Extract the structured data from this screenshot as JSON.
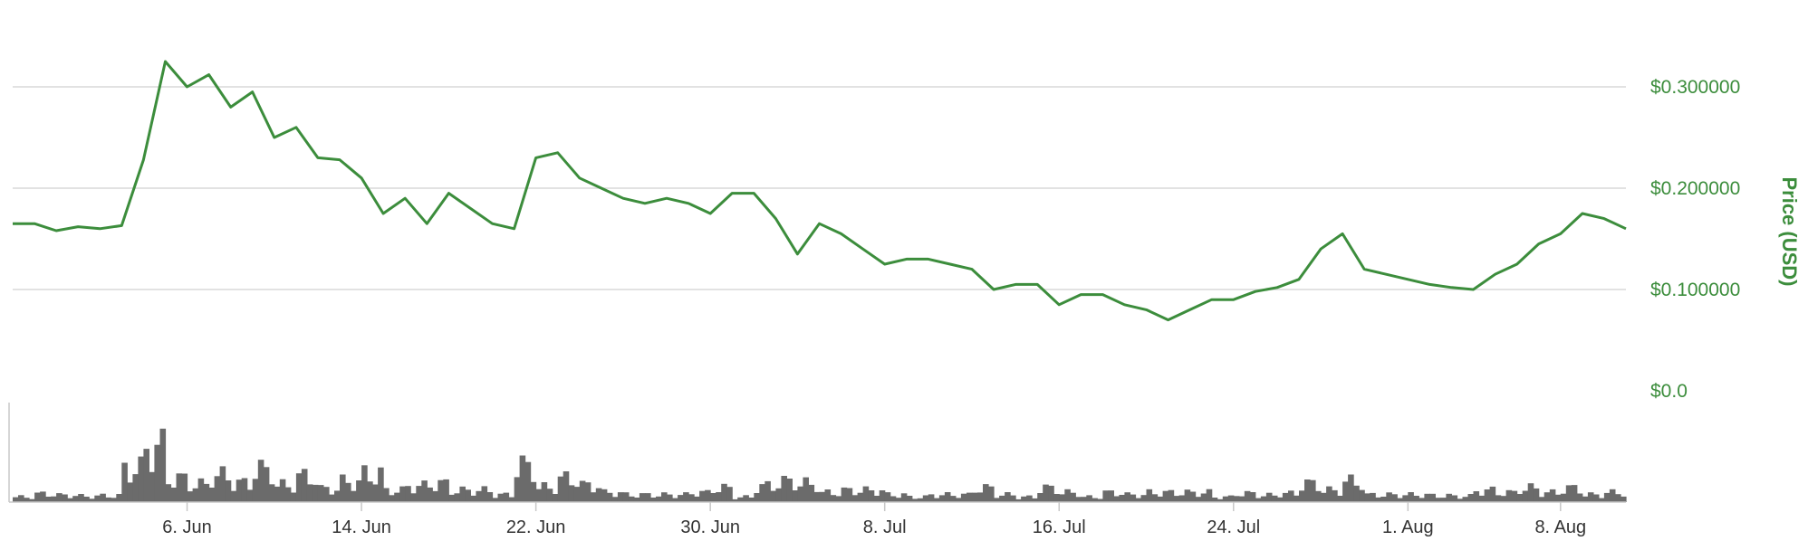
{
  "chart_data": {
    "type": "line",
    "ylabel": "Price (USD)",
    "ylim": [
      0,
      0.35
    ],
    "grid": true,
    "x_ticks": [
      "6. Jun",
      "14. Jun",
      "22. Jun",
      "30. Jun",
      "8. Jul",
      "16. Jul",
      "24. Jul",
      "1. Aug",
      "8. Aug"
    ],
    "y_ticks": [
      "$0.0",
      "$0.100000",
      "$0.200000",
      "$0.300000"
    ],
    "y_tick_values": [
      0,
      0.1,
      0.2,
      0.3
    ],
    "x_start": "2017-05-29",
    "x_end": "2017-08-11",
    "series": [
      {
        "type": "line",
        "color": "#3c8d3c",
        "points": [
          [
            "2017-05-29",
            0.165
          ],
          [
            "2017-05-30",
            0.165
          ],
          [
            "2017-05-31",
            0.158
          ],
          [
            "2017-06-01",
            0.162
          ],
          [
            "2017-06-02",
            0.16
          ],
          [
            "2017-06-03",
            0.163
          ],
          [
            "2017-06-04",
            0.228
          ],
          [
            "2017-06-05",
            0.325
          ],
          [
            "2017-06-06",
            0.3
          ],
          [
            "2017-06-07",
            0.312
          ],
          [
            "2017-06-08",
            0.28
          ],
          [
            "2017-06-09",
            0.295
          ],
          [
            "2017-06-10",
            0.25
          ],
          [
            "2017-06-11",
            0.26
          ],
          [
            "2017-06-12",
            0.23
          ],
          [
            "2017-06-13",
            0.228
          ],
          [
            "2017-06-14",
            0.21
          ],
          [
            "2017-06-15",
            0.175
          ],
          [
            "2017-06-16",
            0.19
          ],
          [
            "2017-06-17",
            0.165
          ],
          [
            "2017-06-18",
            0.195
          ],
          [
            "2017-06-19",
            0.18
          ],
          [
            "2017-06-20",
            0.165
          ],
          [
            "2017-06-21",
            0.16
          ],
          [
            "2017-06-22",
            0.23
          ],
          [
            "2017-06-23",
            0.235
          ],
          [
            "2017-06-24",
            0.21
          ],
          [
            "2017-06-25",
            0.2
          ],
          [
            "2017-06-26",
            0.19
          ],
          [
            "2017-06-27",
            0.185
          ],
          [
            "2017-06-28",
            0.19
          ],
          [
            "2017-06-29",
            0.185
          ],
          [
            "2017-06-30",
            0.175
          ],
          [
            "2017-07-01",
            0.195
          ],
          [
            "2017-07-02",
            0.195
          ],
          [
            "2017-07-03",
            0.17
          ],
          [
            "2017-07-04",
            0.135
          ],
          [
            "2017-07-05",
            0.165
          ],
          [
            "2017-07-06",
            0.155
          ],
          [
            "2017-07-07",
            0.14
          ],
          [
            "2017-07-08",
            0.125
          ],
          [
            "2017-07-09",
            0.13
          ],
          [
            "2017-07-10",
            0.13
          ],
          [
            "2017-07-11",
            0.125
          ],
          [
            "2017-07-12",
            0.12
          ],
          [
            "2017-07-13",
            0.1
          ],
          [
            "2017-07-14",
            0.105
          ],
          [
            "2017-07-15",
            0.105
          ],
          [
            "2017-07-16",
            0.085
          ],
          [
            "2017-07-17",
            0.095
          ],
          [
            "2017-07-18",
            0.095
          ],
          [
            "2017-07-19",
            0.085
          ],
          [
            "2017-07-20",
            0.08
          ],
          [
            "2017-07-21",
            0.07
          ],
          [
            "2017-07-22",
            0.08
          ],
          [
            "2017-07-23",
            0.09
          ],
          [
            "2017-07-24",
            0.09
          ],
          [
            "2017-07-25",
            0.098
          ],
          [
            "2017-07-26",
            0.102
          ],
          [
            "2017-07-27",
            0.11
          ],
          [
            "2017-07-28",
            0.14
          ],
          [
            "2017-07-29",
            0.155
          ],
          [
            "2017-07-30",
            0.12
          ],
          [
            "2017-07-31",
            0.115
          ],
          [
            "2017-08-01",
            0.11
          ],
          [
            "2017-08-02",
            0.105
          ],
          [
            "2017-08-03",
            0.102
          ],
          [
            "2017-08-04",
            0.1
          ],
          [
            "2017-08-05",
            0.115
          ],
          [
            "2017-08-06",
            0.125
          ],
          [
            "2017-08-07",
            0.145
          ],
          [
            "2017-08-08",
            0.155
          ],
          [
            "2017-08-09",
            0.175
          ],
          [
            "2017-08-10",
            0.17
          ],
          [
            "2017-08-11",
            0.16
          ]
        ]
      }
    ]
  }
}
